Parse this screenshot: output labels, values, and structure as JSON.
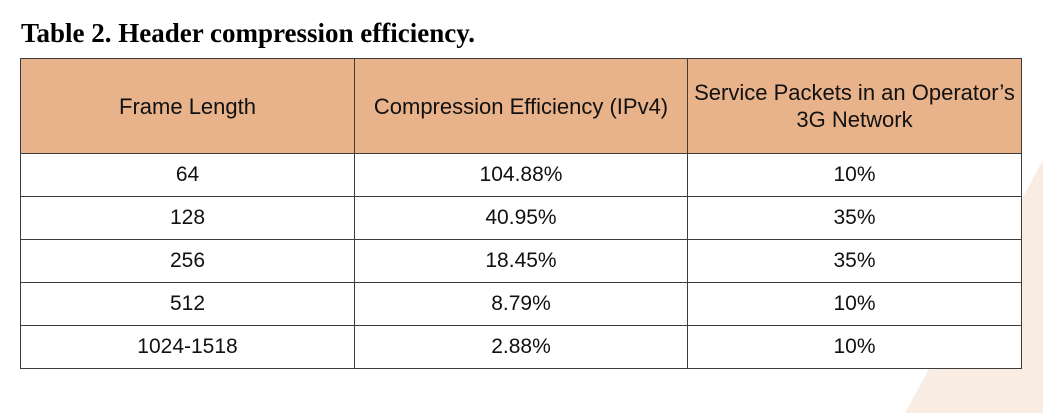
{
  "caption": "Table 2. Header compression efficiency.",
  "table": {
    "headers": [
      "Frame Length",
      "Compression Efficiency (IPv4)",
      "Service Packets in an Operator’s 3G Network"
    ],
    "rows": [
      [
        "64",
        "104.88%",
        "10%"
      ],
      [
        "128",
        "40.95%",
        "35%"
      ],
      [
        "256",
        "18.45%",
        "35%"
      ],
      [
        "512",
        "8.79%",
        "10%"
      ],
      [
        "1024-1518",
        "2.88%",
        "10%"
      ]
    ]
  },
  "colors": {
    "header_fill": "#e8b28a",
    "border": "#3c3c3c",
    "decor_shape": "#f9ece3"
  }
}
